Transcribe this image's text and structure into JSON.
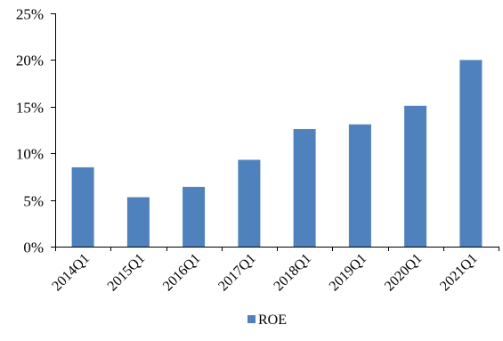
{
  "chart_data": {
    "type": "bar",
    "categories": [
      "2014Q1",
      "2015Q1",
      "2016Q1",
      "2017Q1",
      "2018Q1",
      "2019Q1",
      "2020Q1",
      "2021Q1"
    ],
    "series": [
      {
        "name": "ROE",
        "color": "#4f81bd",
        "values": [
          8.5,
          5.3,
          6.4,
          9.3,
          12.6,
          13.1,
          15.1,
          20.0
        ]
      }
    ],
    "yticks": [
      "0%",
      "5%",
      "10%",
      "15%",
      "20%",
      "25%"
    ],
    "ylim": [
      0,
      25
    ],
    "y_unit": "%",
    "grid": false,
    "legend_position": "bottom",
    "title": "",
    "xlabel": "",
    "ylabel": ""
  }
}
